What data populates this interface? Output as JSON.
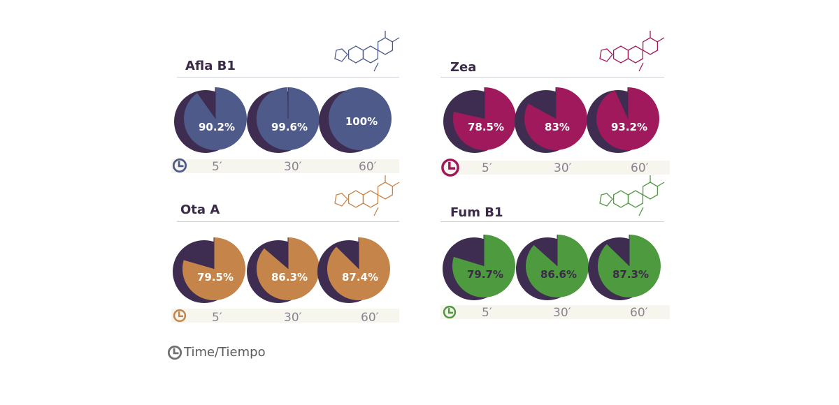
{
  "chart_data": [
    {
      "type": "pie",
      "title": "Afla B1",
      "color": "#4d5a8a",
      "label_color": "#ffffff",
      "categories": [
        "5′",
        "30′",
        "60′"
      ],
      "values": [
        90.2,
        99.6,
        100
      ],
      "labels": [
        "90.2%",
        "99.6%",
        "100%"
      ]
    },
    {
      "type": "pie",
      "title": "Zea",
      "color": "#a0195c",
      "label_color": "#ffffff",
      "categories": [
        "5′",
        "30′",
        "60′"
      ],
      "values": [
        78.5,
        83,
        93.2
      ],
      "labels": [
        "78.5%",
        "83%",
        "93.2%"
      ]
    },
    {
      "type": "pie",
      "title": "Ota A",
      "color": "#c5854a",
      "label_color": "#ffffff",
      "categories": [
        "5′",
        "30′",
        "60′"
      ],
      "values": [
        79.5,
        86.3,
        87.4
      ],
      "labels": [
        "79.5%",
        "86.3%",
        "87.4%"
      ]
    },
    {
      "type": "pie",
      "title": "Fum B1",
      "color": "#4e9a3e",
      "label_color": "#3b2a48",
      "categories": [
        "5′",
        "30′",
        "60′"
      ],
      "values": [
        79.7,
        86.6,
        87.3
      ],
      "labels": [
        "79.7%",
        "86.6%",
        "87.3%"
      ]
    }
  ],
  "shadow_color": "#3e2d50",
  "legend": {
    "text": "Time/Tiempo",
    "icon": "clock-icon",
    "color": "#707070"
  }
}
